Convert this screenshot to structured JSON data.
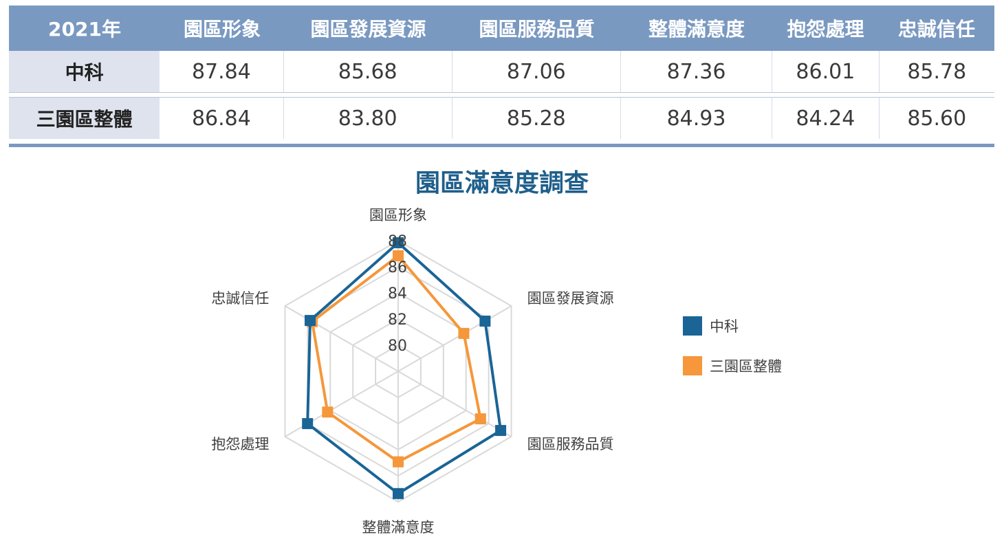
{
  "table": {
    "headers": [
      "2021年",
      "園區形象",
      "園區發展資源",
      "園區服務品質",
      "整體滿意度",
      "抱怨處理",
      "忠誠信任"
    ],
    "rows": [
      {
        "label": "中科",
        "cells": [
          "87.84",
          "85.68",
          "87.06",
          "87.36",
          "86.01",
          "85.78"
        ]
      },
      {
        "label": "三園區整體",
        "cells": [
          "86.84",
          "83.80",
          "85.28",
          "84.93",
          "84.24",
          "85.60"
        ]
      }
    ]
  },
  "chart_data": {
    "type": "radar",
    "title": "園區滿意度調查",
    "categories": [
      "園區形象",
      "園區發展資源",
      "園區服務品質",
      "整體滿意度",
      "抱怨處理",
      "忠誠信任"
    ],
    "rlim": [
      78,
      88
    ],
    "ticks": [
      80,
      82,
      84,
      86,
      88
    ],
    "grid": true,
    "legend_position": "right",
    "series": [
      {
        "name": "中科",
        "color": "#1a6496",
        "values": [
          87.84,
          85.68,
          87.06,
          87.36,
          86.01,
          85.78
        ]
      },
      {
        "name": "三園區整體",
        "color": "#f5973a",
        "values": [
          86.84,
          83.8,
          85.28,
          84.93,
          84.24,
          85.6
        ]
      }
    ]
  }
}
